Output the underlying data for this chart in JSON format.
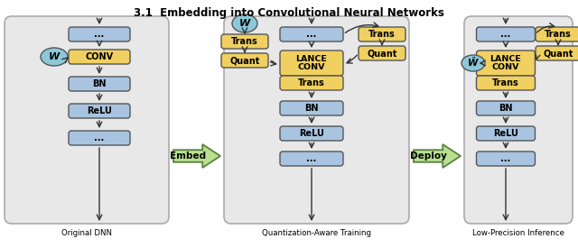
{
  "title": "3.1  Embedding into Convolutional Neural Networks",
  "box_blue": "#a8c4e0",
  "box_yellow": "#f0d060",
  "box_border": "#555555",
  "ellipse_blue": "#8cc8d8",
  "panel_bg": "#e8e8e8",
  "panel_border": "#999999",
  "panel1_label": "Original DNN",
  "panel2_label": "Quantization-Aware Training",
  "panel3_label": "Low-Precision Inference",
  "embed_label": "Embed",
  "deploy_label": "Deploy",
  "green_fill": "#b8e090",
  "green_border": "#5a8040"
}
